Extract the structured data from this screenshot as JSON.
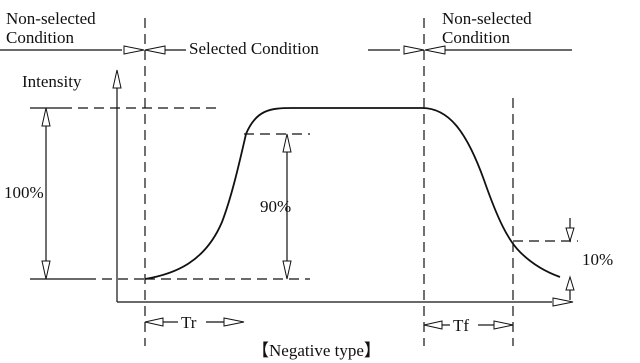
{
  "labels": {
    "non_selected_left_line1": "Non-selected",
    "non_selected_left_line2": "Condition",
    "selected": "Selected Condition",
    "non_selected_right_line1": "Non-selected",
    "non_selected_right_line2": "Condition",
    "intensity": "Intensity",
    "pct_100": "100%",
    "pct_90": "90%",
    "pct_10": "10%",
    "tr": "Tr",
    "tf": "Tf",
    "caption": "【Negative type】"
  }
}
